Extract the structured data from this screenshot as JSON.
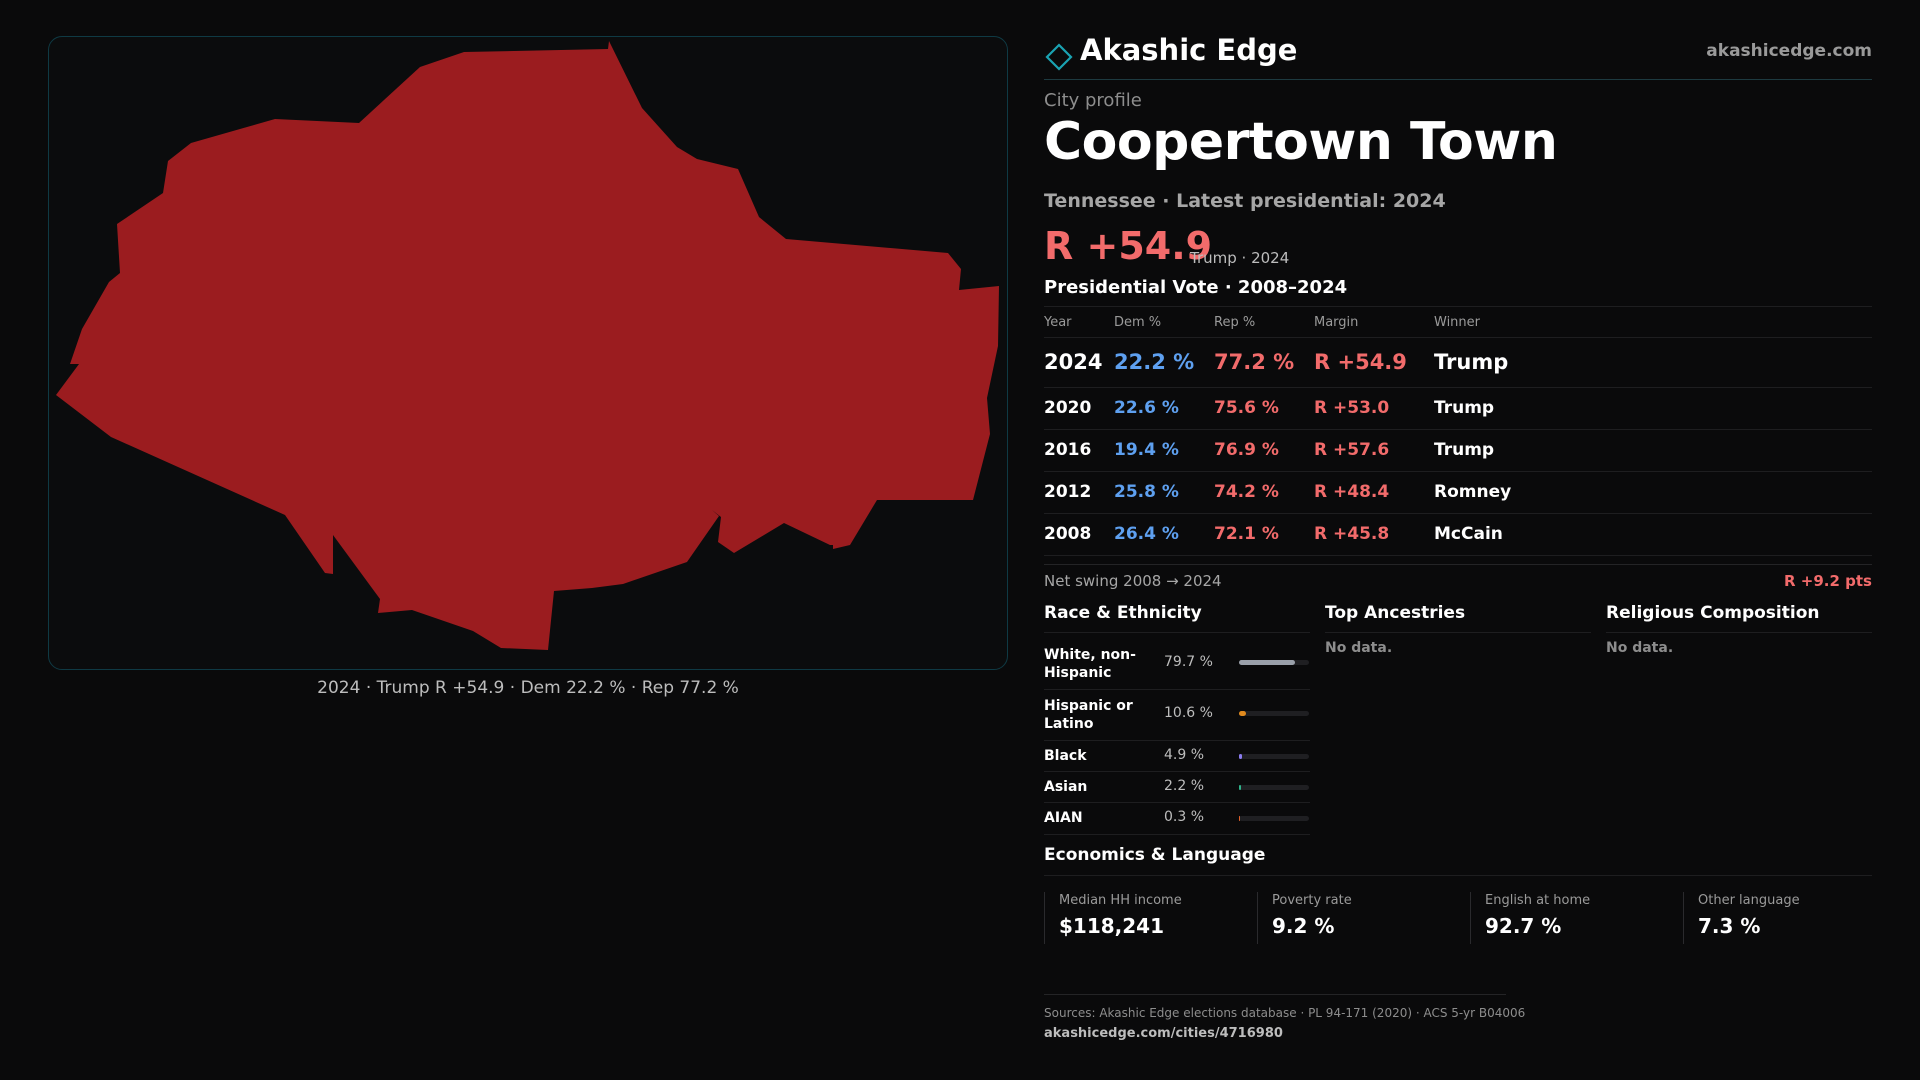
{
  "brand": {
    "name": "Akashic Edge",
    "url": "akashicedge.com",
    "icon": "diamond-outline-icon",
    "accent": "#1aa3b3"
  },
  "map": {
    "fill_color": "#9b1c1f",
    "caption": "2024 · Trump R +54.9 · Dem 22.2 % · Rep 77.2 %"
  },
  "profile": {
    "kicker": "City profile",
    "title": "Coopertown Town",
    "subtitle": "Tennessee · Latest presidential: 2024",
    "headline_margin": "R +54.9",
    "headline_note": "Trump · 2024"
  },
  "presidential": {
    "title": "Presidential Vote · 2008–2024",
    "headers": {
      "year": "Year",
      "dem": "Dem %",
      "rep": "Rep %",
      "margin": "Margin",
      "winner": "Winner"
    },
    "rows": [
      {
        "year": "2024",
        "dem": "22.2 %",
        "rep": "77.2 %",
        "margin": "R +54.9",
        "winner": "Trump"
      },
      {
        "year": "2020",
        "dem": "22.6 %",
        "rep": "75.6 %",
        "margin": "R +53.0",
        "winner": "Trump"
      },
      {
        "year": "2016",
        "dem": "19.4 %",
        "rep": "76.9 %",
        "margin": "R +57.6",
        "winner": "Trump"
      },
      {
        "year": "2012",
        "dem": "25.8 %",
        "rep": "74.2 %",
        "margin": "R +48.4",
        "winner": "Romney"
      },
      {
        "year": "2008",
        "dem": "26.4 %",
        "rep": "72.1 %",
        "margin": "R +45.8",
        "winner": "McCain"
      }
    ],
    "colors": {
      "dem": "#5ea0f0",
      "rep": "#f26b6b"
    }
  },
  "swing": {
    "label": "Net swing 2008 → 2024",
    "value": "R +9.2 pts"
  },
  "race": {
    "title": "Race & Ethnicity",
    "items": [
      {
        "label": "White, non-Hispanic",
        "pct": "79.7 %",
        "share": 0.797,
        "color": "#9aa0aa"
      },
      {
        "label": "Hispanic or Latino",
        "pct": "10.6 %",
        "share": 0.106,
        "color": "#e08a1e"
      },
      {
        "label": "Black",
        "pct": "4.9 %",
        "share": 0.049,
        "color": "#8b7cf0"
      },
      {
        "label": "Asian",
        "pct": "2.2 %",
        "share": 0.022,
        "color": "#2fb38a"
      },
      {
        "label": "AIAN",
        "pct": "0.3 %",
        "share": 0.003,
        "color": "#e0602a"
      }
    ]
  },
  "ancestries": {
    "title": "Top Ancestries",
    "empty": "No data."
  },
  "religion": {
    "title": "Religious Composition",
    "empty": "No data."
  },
  "economics": {
    "title": "Economics & Language",
    "stats": [
      {
        "label": "Median HH income",
        "value": "$118,241"
      },
      {
        "label": "Poverty rate",
        "value": "9.2 %"
      },
      {
        "label": "English at home",
        "value": "92.7 %"
      },
      {
        "label": "Other language",
        "value": "7.3 %"
      }
    ]
  },
  "footer": {
    "sources": "Sources: Akashic Edge elections database · PL 94-171 (2020) · ACS 5-yr B04006",
    "url": "akashicedge.com/cities/4716980"
  }
}
